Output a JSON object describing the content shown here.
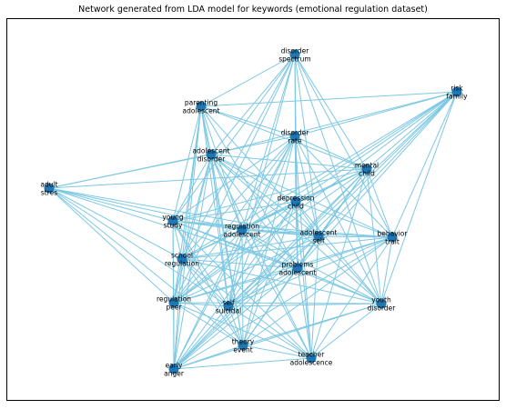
{
  "title": "Network generated from LDA model for keywords (emotional regulation dataset)",
  "colors": {
    "edge": "#7ec8e3",
    "node": "#1f77b4",
    "label": "#000000"
  },
  "network": {
    "nodes": [
      {
        "id": "disorder_spectrum",
        "lines": [
          "disorder",
          "spectrum"
        ]
      },
      {
        "id": "risk_family",
        "lines": [
          "risk",
          "family"
        ]
      },
      {
        "id": "parenting_adolescent",
        "lines": [
          "parenting",
          "adolescent"
        ]
      },
      {
        "id": "disorder_rate",
        "lines": [
          "disorder",
          "rate"
        ]
      },
      {
        "id": "adolescent_disorder",
        "lines": [
          "adolescent",
          "disorder"
        ]
      },
      {
        "id": "mental_child",
        "lines": [
          "mental",
          "child"
        ]
      },
      {
        "id": "adult_stres",
        "lines": [
          "adult",
          "stres"
        ]
      },
      {
        "id": "depression_child",
        "lines": [
          "depression",
          "child"
        ]
      },
      {
        "id": "young_study",
        "lines": [
          "young",
          "study"
        ]
      },
      {
        "id": "regulation_adolescent",
        "lines": [
          "regulation",
          "adolescent"
        ]
      },
      {
        "id": "adolescent_self",
        "lines": [
          "adolescent",
          "self"
        ]
      },
      {
        "id": "behavior_trait",
        "lines": [
          "behavior",
          "trait"
        ]
      },
      {
        "id": "school_regulation",
        "lines": [
          "school",
          "regulation"
        ]
      },
      {
        "id": "problems_adolescent",
        "lines": [
          "problems",
          "adolescent"
        ]
      },
      {
        "id": "regulation_peer",
        "lines": [
          "regulation",
          "peer"
        ]
      },
      {
        "id": "self_suicidal",
        "lines": [
          "self",
          "suicidal"
        ]
      },
      {
        "id": "youth_disorder",
        "lines": [
          "youth",
          "disorder"
        ]
      },
      {
        "id": "theory_event",
        "lines": [
          "theory",
          "event"
        ]
      },
      {
        "id": "teacher_adolescence",
        "lines": [
          "teacher",
          "adolescence"
        ]
      },
      {
        "id": "early_anger",
        "lines": [
          "early",
          "anger"
        ]
      }
    ],
    "edges": [
      [
        "disorder_spectrum",
        "parenting_adolescent"
      ],
      [
        "disorder_spectrum",
        "adolescent_disorder"
      ],
      [
        "disorder_spectrum",
        "depression_child"
      ],
      [
        "disorder_spectrum",
        "young_study"
      ],
      [
        "disorder_spectrum",
        "regulation_adolescent"
      ],
      [
        "disorder_spectrum",
        "mental_child"
      ],
      [
        "disorder_spectrum",
        "adolescent_self"
      ],
      [
        "disorder_spectrum",
        "school_regulation"
      ],
      [
        "disorder_spectrum",
        "problems_adolescent"
      ],
      [
        "disorder_spectrum",
        "self_suicidal"
      ],
      [
        "disorder_spectrum",
        "youth_disorder"
      ],
      [
        "disorder_spectrum",
        "regulation_peer"
      ],
      [
        "disorder_spectrum",
        "behavior_trait"
      ],
      [
        "risk_family",
        "parenting_adolescent"
      ],
      [
        "risk_family",
        "adolescent_disorder"
      ],
      [
        "risk_family",
        "disorder_rate"
      ],
      [
        "risk_family",
        "mental_child"
      ],
      [
        "risk_family",
        "depression_child"
      ],
      [
        "risk_family",
        "regulation_adolescent"
      ],
      [
        "risk_family",
        "adolescent_self"
      ],
      [
        "risk_family",
        "problems_adolescent"
      ],
      [
        "risk_family",
        "self_suicidal"
      ],
      [
        "risk_family",
        "youth_disorder"
      ],
      [
        "risk_family",
        "behavior_trait"
      ],
      [
        "risk_family",
        "early_anger"
      ],
      [
        "risk_family",
        "regulation_peer"
      ],
      [
        "risk_family",
        "school_regulation"
      ],
      [
        "parenting_adolescent",
        "adolescent_disorder"
      ],
      [
        "parenting_adolescent",
        "disorder_rate"
      ],
      [
        "parenting_adolescent",
        "mental_child"
      ],
      [
        "parenting_adolescent",
        "young_study"
      ],
      [
        "parenting_adolescent",
        "regulation_adolescent"
      ],
      [
        "parenting_adolescent",
        "school_regulation"
      ],
      [
        "parenting_adolescent",
        "regulation_peer"
      ],
      [
        "parenting_adolescent",
        "self_suicidal"
      ],
      [
        "parenting_adolescent",
        "problems_adolescent"
      ],
      [
        "parenting_adolescent",
        "adolescent_self"
      ],
      [
        "parenting_adolescent",
        "theory_event"
      ],
      [
        "parenting_adolescent",
        "early_anger"
      ],
      [
        "disorder_rate",
        "adult_stres"
      ],
      [
        "disorder_rate",
        "young_study"
      ],
      [
        "disorder_rate",
        "regulation_adolescent"
      ],
      [
        "disorder_rate",
        "adolescent_self"
      ],
      [
        "disorder_rate",
        "behavior_trait"
      ],
      [
        "disorder_rate",
        "school_regulation"
      ],
      [
        "disorder_rate",
        "problems_adolescent"
      ],
      [
        "disorder_rate",
        "regulation_peer"
      ],
      [
        "disorder_rate",
        "self_suicidal"
      ],
      [
        "disorder_rate",
        "youth_disorder"
      ],
      [
        "disorder_rate",
        "theory_event"
      ],
      [
        "disorder_rate",
        "teacher_adolescence"
      ],
      [
        "disorder_rate",
        "early_anger"
      ],
      [
        "disorder_rate",
        "mental_child"
      ],
      [
        "adolescent_disorder",
        "adult_stres"
      ],
      [
        "adolescent_disorder",
        "mental_child"
      ],
      [
        "adolescent_disorder",
        "depression_child"
      ],
      [
        "adolescent_disorder",
        "young_study"
      ],
      [
        "adolescent_disorder",
        "regulation_adolescent"
      ],
      [
        "adolescent_disorder",
        "adolescent_self"
      ],
      [
        "adolescent_disorder",
        "behavior_trait"
      ],
      [
        "adolescent_disorder",
        "school_regulation"
      ],
      [
        "adolescent_disorder",
        "problems_adolescent"
      ],
      [
        "adolescent_disorder",
        "regulation_peer"
      ],
      [
        "adolescent_disorder",
        "self_suicidal"
      ],
      [
        "adolescent_disorder",
        "youth_disorder"
      ],
      [
        "adolescent_disorder",
        "theory_event"
      ],
      [
        "adolescent_disorder",
        "teacher_adolescence"
      ],
      [
        "adolescent_disorder",
        "early_anger"
      ],
      [
        "mental_child",
        "adult_stres"
      ],
      [
        "mental_child",
        "depression_child"
      ],
      [
        "mental_child",
        "young_study"
      ],
      [
        "mental_child",
        "regulation_adolescent"
      ],
      [
        "mental_child",
        "adolescent_self"
      ],
      [
        "mental_child",
        "behavior_trait"
      ],
      [
        "mental_child",
        "school_regulation"
      ],
      [
        "mental_child",
        "problems_adolescent"
      ],
      [
        "mental_child",
        "regulation_peer"
      ],
      [
        "mental_child",
        "self_suicidal"
      ],
      [
        "mental_child",
        "youth_disorder"
      ],
      [
        "mental_child",
        "theory_event"
      ],
      [
        "mental_child",
        "teacher_adolescence"
      ],
      [
        "mental_child",
        "early_anger"
      ],
      [
        "adult_stres",
        "young_study"
      ],
      [
        "adult_stres",
        "regulation_adolescent"
      ],
      [
        "adult_stres",
        "school_regulation"
      ],
      [
        "adult_stres",
        "regulation_peer"
      ],
      [
        "adult_stres",
        "self_suicidal"
      ],
      [
        "adult_stres",
        "problems_adolescent"
      ],
      [
        "adult_stres",
        "theory_event"
      ],
      [
        "adult_stres",
        "adolescent_self"
      ],
      [
        "depression_child",
        "young_study"
      ],
      [
        "depression_child",
        "regulation_adolescent"
      ],
      [
        "depression_child",
        "adolescent_self"
      ],
      [
        "depression_child",
        "behavior_trait"
      ],
      [
        "depression_child",
        "school_regulation"
      ],
      [
        "depression_child",
        "problems_adolescent"
      ],
      [
        "depression_child",
        "regulation_peer"
      ],
      [
        "depression_child",
        "self_suicidal"
      ],
      [
        "depression_child",
        "youth_disorder"
      ],
      [
        "depression_child",
        "theory_event"
      ],
      [
        "depression_child",
        "teacher_adolescence"
      ],
      [
        "depression_child",
        "early_anger"
      ],
      [
        "young_study",
        "regulation_adolescent"
      ],
      [
        "young_study",
        "adolescent_self"
      ],
      [
        "young_study",
        "behavior_trait"
      ],
      [
        "young_study",
        "school_regulation"
      ],
      [
        "young_study",
        "problems_adolescent"
      ],
      [
        "young_study",
        "regulation_peer"
      ],
      [
        "young_study",
        "self_suicidal"
      ],
      [
        "young_study",
        "youth_disorder"
      ],
      [
        "young_study",
        "theory_event"
      ],
      [
        "young_study",
        "teacher_adolescence"
      ],
      [
        "young_study",
        "early_anger"
      ],
      [
        "regulation_adolescent",
        "adolescent_self"
      ],
      [
        "regulation_adolescent",
        "behavior_trait"
      ],
      [
        "regulation_adolescent",
        "school_regulation"
      ],
      [
        "regulation_adolescent",
        "problems_adolescent"
      ],
      [
        "regulation_adolescent",
        "regulation_peer"
      ],
      [
        "regulation_adolescent",
        "self_suicidal"
      ],
      [
        "regulation_adolescent",
        "youth_disorder"
      ],
      [
        "regulation_adolescent",
        "theory_event"
      ],
      [
        "regulation_adolescent",
        "teacher_adolescence"
      ],
      [
        "regulation_adolescent",
        "early_anger"
      ],
      [
        "adolescent_self",
        "behavior_trait"
      ],
      [
        "adolescent_self",
        "school_regulation"
      ],
      [
        "adolescent_self",
        "problems_adolescent"
      ],
      [
        "adolescent_self",
        "regulation_peer"
      ],
      [
        "adolescent_self",
        "self_suicidal"
      ],
      [
        "adolescent_self",
        "youth_disorder"
      ],
      [
        "adolescent_self",
        "theory_event"
      ],
      [
        "adolescent_self",
        "teacher_adolescence"
      ],
      [
        "adolescent_self",
        "early_anger"
      ],
      [
        "behavior_trait",
        "school_regulation"
      ],
      [
        "behavior_trait",
        "problems_adolescent"
      ],
      [
        "behavior_trait",
        "regulation_peer"
      ],
      [
        "behavior_trait",
        "self_suicidal"
      ],
      [
        "behavior_trait",
        "youth_disorder"
      ],
      [
        "behavior_trait",
        "theory_event"
      ],
      [
        "behavior_trait",
        "teacher_adolescence"
      ],
      [
        "behavior_trait",
        "early_anger"
      ],
      [
        "school_regulation",
        "problems_adolescent"
      ],
      [
        "school_regulation",
        "regulation_peer"
      ],
      [
        "school_regulation",
        "self_suicidal"
      ],
      [
        "school_regulation",
        "youth_disorder"
      ],
      [
        "school_regulation",
        "theory_event"
      ],
      [
        "school_regulation",
        "teacher_adolescence"
      ],
      [
        "school_regulation",
        "early_anger"
      ],
      [
        "problems_adolescent",
        "regulation_peer"
      ],
      [
        "problems_adolescent",
        "self_suicidal"
      ],
      [
        "problems_adolescent",
        "youth_disorder"
      ],
      [
        "problems_adolescent",
        "theory_event"
      ],
      [
        "problems_adolescent",
        "teacher_adolescence"
      ],
      [
        "problems_adolescent",
        "early_anger"
      ],
      [
        "regulation_peer",
        "self_suicidal"
      ],
      [
        "regulation_peer",
        "youth_disorder"
      ],
      [
        "regulation_peer",
        "theory_event"
      ],
      [
        "regulation_peer",
        "teacher_adolescence"
      ],
      [
        "regulation_peer",
        "early_anger"
      ],
      [
        "self_suicidal",
        "youth_disorder"
      ],
      [
        "self_suicidal",
        "theory_event"
      ],
      [
        "self_suicidal",
        "teacher_adolescence"
      ],
      [
        "self_suicidal",
        "early_anger"
      ],
      [
        "youth_disorder",
        "theory_event"
      ],
      [
        "youth_disorder",
        "teacher_adolescence"
      ],
      [
        "youth_disorder",
        "early_anger"
      ],
      [
        "theory_event",
        "teacher_adolescence"
      ],
      [
        "theory_event",
        "early_anger"
      ],
      [
        "teacher_adolescence",
        "early_anger"
      ]
    ]
  }
}
